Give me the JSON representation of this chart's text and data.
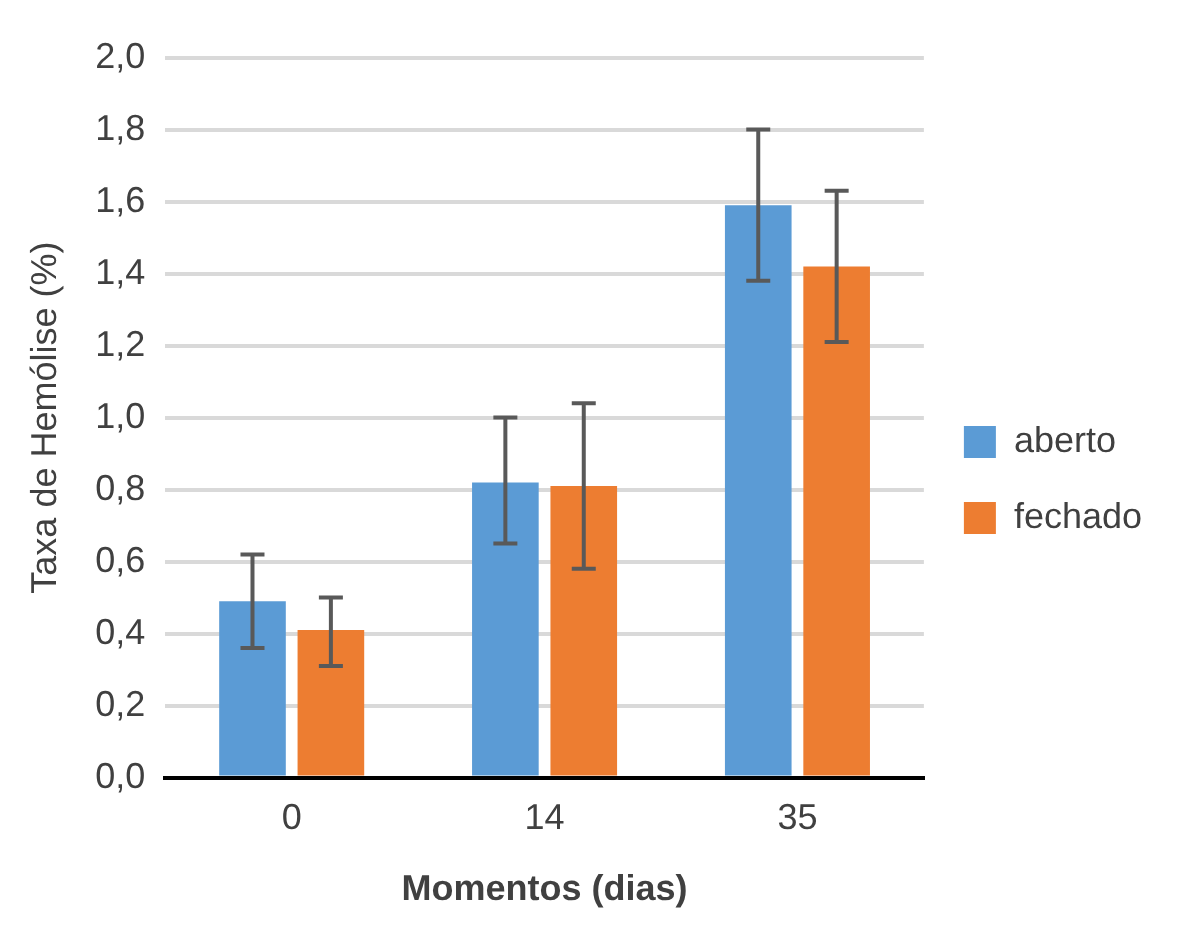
{
  "chart_data": {
    "type": "bar",
    "xlabel": "Momentos (dias)",
    "ylabel": "Taxa de Hemólise (%)",
    "categories": [
      "0",
      "14",
      "35"
    ],
    "series": [
      {
        "name": "aberto",
        "color": "#5b9bd5",
        "values": [
          0.49,
          0.82,
          1.59
        ],
        "errors": [
          [
            0.36,
            0.62
          ],
          [
            0.65,
            1.0
          ],
          [
            1.38,
            1.8
          ]
        ]
      },
      {
        "name": "fechado",
        "color": "#ed7d31",
        "values": [
          0.41,
          0.81,
          1.42
        ],
        "errors": [
          [
            0.31,
            0.5
          ],
          [
            0.58,
            1.04
          ],
          [
            1.21,
            1.63
          ]
        ]
      }
    ],
    "ylim": [
      0,
      2
    ],
    "yticks": [
      {
        "value": 0,
        "label": "0,0"
      },
      {
        "value": 0.2,
        "label": "0,2"
      },
      {
        "value": 0.4,
        "label": "0,4"
      },
      {
        "value": 0.6,
        "label": "0,6"
      },
      {
        "value": 0.8,
        "label": "0,8"
      },
      {
        "value": 1,
        "label": "1,0"
      },
      {
        "value": 1.2,
        "label": "1,2"
      },
      {
        "value": 1.4,
        "label": "1,4"
      },
      {
        "value": 1.6,
        "label": "1,6"
      },
      {
        "value": 1.8,
        "label": "1,8"
      },
      {
        "value": 2,
        "label": "2,0"
      }
    ],
    "grid": "y",
    "legend": "right"
  }
}
